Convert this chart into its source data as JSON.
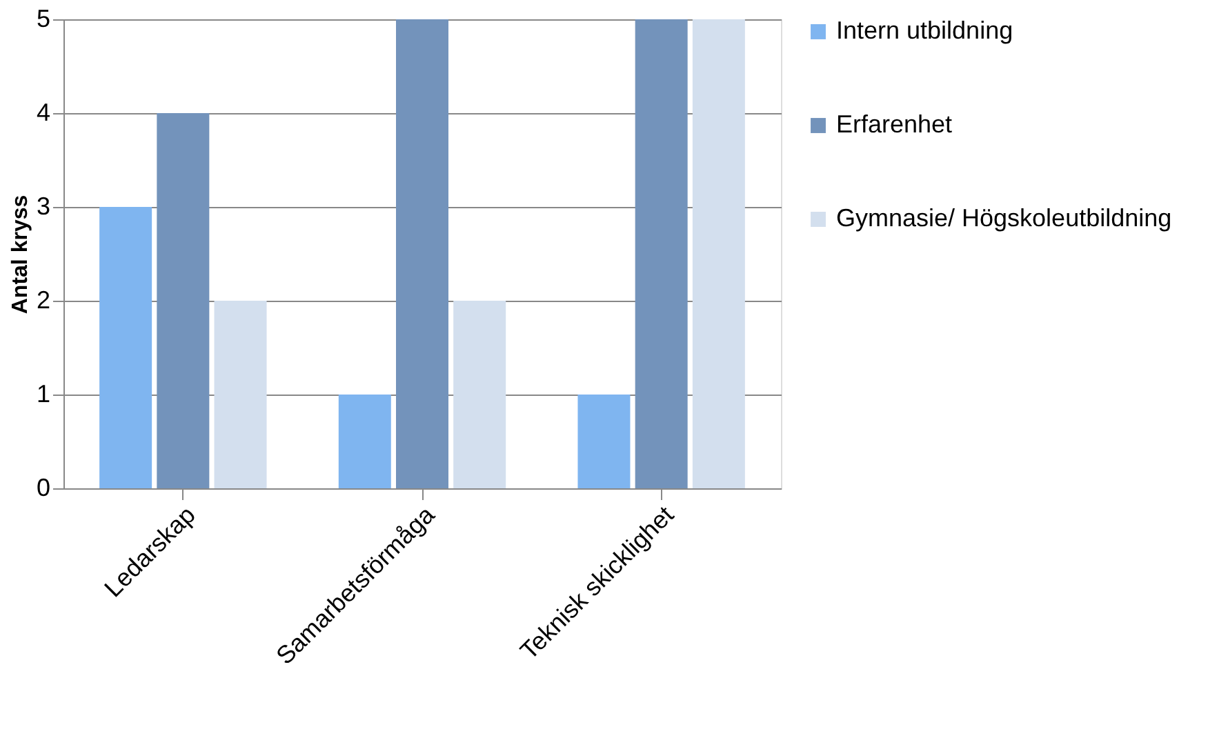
{
  "chart_data": {
    "type": "bar",
    "ylabel": "Antal kryss",
    "categories": [
      "Ledarskap",
      "Samarbetsförmåga",
      "Teknisk skicklighet"
    ],
    "series": [
      {
        "name": "Intern utbildning",
        "color": "#7fb5f0",
        "values": [
          3,
          1,
          1
        ]
      },
      {
        "name": "Erfarenhet",
        "color": "#7393bb",
        "values": [
          4,
          5,
          5
        ]
      },
      {
        "name": "Gymnasie/ Högskoleutbildning",
        "color": "#d3dfee",
        "values": [
          2,
          2,
          5
        ]
      }
    ],
    "ylim": [
      0,
      5
    ],
    "yticks": [
      0,
      1,
      2,
      3,
      4,
      5
    ],
    "grid": "y",
    "legend": "right"
  }
}
